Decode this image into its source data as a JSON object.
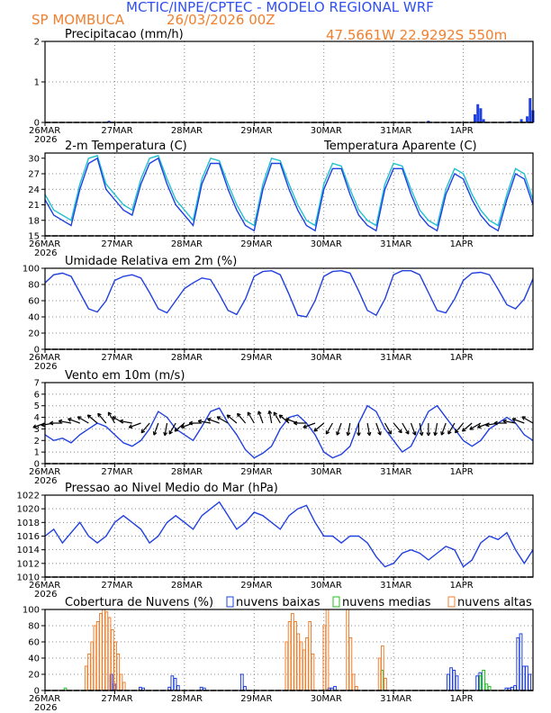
{
  "header": {
    "title": "MCTIC/INPE/CPTEC - MODELO REGIONAL WRF",
    "location": "SP MOMBUCA",
    "run": "26/03/2026 00Z",
    "coords": "47.5661W 22.9292S 550m"
  },
  "colors": {
    "blue": "#2040e0",
    "cyan": "#20c0d0",
    "orange": "#f08030",
    "green": "#20c020",
    "black": "#000000"
  },
  "x_axis": {
    "labels": [
      "26MAR",
      "27MAR",
      "28MAR",
      "29MAR",
      "30MAR",
      "31MAR",
      "1APR"
    ],
    "year": "2026",
    "range_hours": [
      0,
      168
    ]
  },
  "chart_data": [
    {
      "type": "bar",
      "id": "precip",
      "title": "Precipitacao (mm/h)",
      "ylim": [
        0,
        2
      ],
      "yticks": [
        "0",
        "1",
        "2"
      ],
      "x_hours": [
        22,
        38,
        132,
        148,
        149,
        150,
        151,
        160,
        164,
        166,
        167,
        168
      ],
      "values": [
        0.04,
        0.02,
        0.04,
        0.2,
        0.45,
        0.35,
        0.08,
        0.03,
        0.08,
        0.15,
        0.6,
        0.3
      ],
      "series": [
        {
          "name": "Precipitacao",
          "color": "#2040e0"
        }
      ]
    },
    {
      "type": "line",
      "id": "temp",
      "title": "2-m Temperatura (C)",
      "ylim": [
        15,
        31
      ],
      "yticks": [
        "15",
        "18",
        "21",
        "24",
        "27",
        "30"
      ],
      "x": [
        0,
        3,
        6,
        9,
        12,
        15,
        18,
        21,
        24,
        27,
        30,
        33,
        36,
        39,
        42,
        45,
        48,
        51,
        54,
        57,
        60,
        63,
        66,
        69,
        72,
        75,
        78,
        81,
        84,
        87,
        90,
        93,
        96,
        99,
        102,
        105,
        108,
        111,
        114,
        117,
        120,
        123,
        126,
        129,
        132,
        135,
        138,
        141,
        144,
        147,
        150,
        153,
        156,
        159,
        162,
        165,
        168
      ],
      "series": [
        {
          "name": "2-m Temperatura",
          "color": "#2040e0",
          "values": [
            22,
            19,
            18,
            17,
            24,
            29,
            30,
            24,
            22,
            20,
            19,
            25,
            29,
            30,
            25,
            21,
            19,
            17,
            25,
            29,
            29,
            24,
            20,
            17,
            16,
            24,
            29,
            29,
            24,
            20,
            17,
            16,
            24,
            28,
            28,
            23,
            19,
            17,
            16,
            24,
            28,
            28,
            23,
            19,
            17,
            16,
            23,
            27,
            26,
            22,
            19,
            17,
            16,
            22,
            27,
            26,
            21
          ]
        },
        {
          "name": "Temperatura Aparente (C)",
          "color": "#20c0d0",
          "values": [
            23,
            20,
            19,
            18,
            25,
            30,
            30.5,
            25,
            23,
            21,
            20,
            26,
            30,
            30.5,
            26,
            22,
            20,
            18,
            26,
            30,
            29.5,
            25,
            21,
            18,
            17,
            25,
            30,
            29.5,
            25,
            21,
            18,
            17,
            25,
            29,
            28.5,
            24,
            20,
            18,
            17,
            25,
            29,
            28.5,
            24,
            20,
            18,
            17,
            24,
            28,
            27,
            23,
            20,
            18,
            17,
            23,
            28,
            27,
            22
          ]
        }
      ]
    },
    {
      "type": "line",
      "id": "rh",
      "title": "Umidade Relativa em 2m (%)",
      "ylim": [
        0,
        100
      ],
      "yticks": [
        "0",
        "20",
        "40",
        "60",
        "80",
        "100"
      ],
      "x": [
        0,
        3,
        6,
        9,
        12,
        15,
        18,
        21,
        24,
        27,
        30,
        33,
        36,
        39,
        42,
        45,
        48,
        51,
        54,
        57,
        60,
        63,
        66,
        69,
        72,
        75,
        78,
        81,
        84,
        87,
        90,
        93,
        96,
        99,
        102,
        105,
        108,
        111,
        114,
        117,
        120,
        123,
        126,
        129,
        132,
        135,
        138,
        141,
        144,
        147,
        150,
        153,
        156,
        159,
        162,
        165,
        168
      ],
      "series": [
        {
          "name": "Umidade Relativa",
          "color": "#2040e0",
          "values": [
            82,
            92,
            94,
            90,
            70,
            50,
            46,
            60,
            85,
            90,
            92,
            88,
            70,
            50,
            45,
            60,
            75,
            82,
            88,
            86,
            68,
            48,
            43,
            62,
            90,
            96,
            97,
            92,
            68,
            42,
            40,
            60,
            90,
            96,
            97,
            94,
            72,
            48,
            42,
            62,
            92,
            97,
            97,
            92,
            70,
            48,
            45,
            62,
            85,
            94,
            95,
            92,
            74,
            55,
            50,
            62,
            87
          ]
        }
      ]
    },
    {
      "type": "line",
      "id": "wind",
      "title": "Vento em 10m (m/s)",
      "ylim": [
        0,
        7
      ],
      "yticks": [
        "0",
        "1",
        "2",
        "3",
        "4",
        "5",
        "6",
        "7"
      ],
      "x": [
        0,
        3,
        6,
        9,
        12,
        15,
        18,
        21,
        24,
        27,
        30,
        33,
        36,
        39,
        42,
        45,
        48,
        51,
        54,
        57,
        60,
        63,
        66,
        69,
        72,
        75,
        78,
        81,
        84,
        87,
        90,
        93,
        96,
        99,
        102,
        105,
        108,
        111,
        114,
        117,
        120,
        123,
        126,
        129,
        132,
        135,
        138,
        141,
        144,
        147,
        150,
        153,
        156,
        159,
        162,
        165,
        168
      ],
      "series": [
        {
          "name": "Vento",
          "color": "#2040e0",
          "values": [
            2.5,
            2.0,
            2.2,
            1.8,
            2.5,
            3.0,
            3.5,
            3.2,
            2.5,
            1.8,
            1.5,
            2.0,
            3.0,
            4.5,
            4.0,
            3.0,
            2.5,
            2.0,
            3.2,
            4.5,
            4.8,
            3.5,
            2.5,
            1.2,
            0.5,
            0.9,
            1.5,
            3.0,
            4.0,
            4.2,
            3.5,
            2.5,
            1.0,
            0.5,
            0.8,
            1.5,
            3.5,
            5.0,
            4.5,
            3.0,
            2.0,
            1.0,
            1.5,
            3.0,
            4.5,
            5.0,
            4.0,
            3.0,
            2.0,
            1.5,
            2.0,
            3.0,
            3.5,
            4.0,
            3.5,
            2.5,
            2.0
          ]
        }
      ]
    },
    {
      "type": "line",
      "id": "pres",
      "title": "Pressao ao Nivel Medio do Mar (hPa)",
      "ylim": [
        1010,
        1022
      ],
      "yticks": [
        "1010",
        "1012",
        "1014",
        "1016",
        "1018",
        "1020",
        "1022"
      ],
      "x": [
        0,
        3,
        6,
        9,
        12,
        15,
        18,
        21,
        24,
        27,
        30,
        33,
        36,
        39,
        42,
        45,
        48,
        51,
        54,
        57,
        60,
        63,
        66,
        69,
        72,
        75,
        78,
        81,
        84,
        87,
        90,
        93,
        96,
        99,
        102,
        105,
        108,
        111,
        114,
        117,
        120,
        123,
        126,
        129,
        132,
        135,
        138,
        141,
        144,
        147,
        150,
        153,
        156,
        159,
        162,
        165,
        168
      ],
      "series": [
        {
          "name": "Pressao",
          "color": "#2040e0",
          "values": [
            1016,
            1017,
            1015,
            1016.5,
            1018,
            1016,
            1015,
            1016,
            1018,
            1019,
            1018,
            1017,
            1015,
            1016,
            1018,
            1019,
            1018,
            1017,
            1019,
            1020,
            1021,
            1019,
            1017,
            1018,
            1019.5,
            1019,
            1018,
            1017,
            1019,
            1020,
            1020.5,
            1018,
            1016,
            1016,
            1015,
            1016,
            1016,
            1015,
            1013,
            1011.5,
            1012,
            1013.5,
            1014,
            1013.5,
            1012.5,
            1013.5,
            1014.5,
            1014,
            1011.5,
            1012.5,
            1015,
            1016,
            1015.5,
            1016.5,
            1014,
            1012,
            1014
          ]
        }
      ]
    },
    {
      "type": "bar",
      "id": "clouds",
      "title": "Cobertura de Nuvens (%)",
      "ylim": [
        0,
        100
      ],
      "yticks": [
        "0",
        "20",
        "40",
        "60",
        "80",
        "100"
      ],
      "series": [
        {
          "name": "nuvens baixas",
          "color": "#2040e0",
          "x_hours": [
            23,
            24,
            33,
            34,
            43,
            44,
            45,
            46,
            54,
            55,
            68,
            69,
            98,
            99,
            100,
            139,
            140,
            141,
            142,
            149,
            150,
            159,
            160,
            161,
            162,
            163,
            164,
            165,
            166,
            167
          ],
          "values": [
            20,
            8,
            4,
            3,
            4,
            18,
            15,
            6,
            4,
            3,
            20,
            5,
            3,
            3,
            5,
            20,
            28,
            25,
            18,
            18,
            22,
            3,
            3,
            4,
            6,
            65,
            70,
            30,
            30,
            20
          ]
        },
        {
          "name": "nuvens medias",
          "color": "#20c020",
          "x_hours": [
            7,
            116,
            150,
            151,
            152,
            153
          ],
          "values": [
            3,
            25,
            18,
            25,
            8,
            5
          ]
        },
        {
          "name": "nuvens altas",
          "color": "#f08030",
          "x_hours": [
            14,
            15,
            16,
            17,
            18,
            19,
            20,
            21,
            22,
            23,
            24,
            25,
            26,
            27,
            83,
            84,
            85,
            86,
            87,
            88,
            89,
            90,
            91,
            92,
            96,
            97,
            104,
            105,
            106,
            107,
            115,
            116,
            117
          ],
          "values": [
            30,
            45,
            60,
            80,
            85,
            95,
            100,
            97,
            90,
            75,
            60,
            45,
            20,
            10,
            60,
            85,
            95,
            85,
            70,
            60,
            50,
            65,
            85,
            45,
            80,
            100,
            100,
            65,
            20,
            5,
            40,
            55,
            15
          ]
        }
      ]
    }
  ],
  "wind_arrows": {
    "x_hours": [
      0,
      3,
      6,
      9,
      12,
      15,
      18,
      21,
      24,
      27,
      30,
      33,
      36,
      39,
      42,
      45,
      48,
      51,
      54,
      57,
      60,
      63,
      66,
      69,
      72,
      75,
      78,
      81,
      84,
      87,
      90,
      93,
      96,
      99,
      102,
      105,
      108,
      111,
      114,
      117,
      120,
      123,
      126,
      129,
      132,
      135,
      138,
      141,
      144,
      147,
      150,
      153,
      156,
      159,
      162,
      165,
      168
    ],
    "angles_deg": [
      200,
      190,
      180,
      170,
      160,
      150,
      140,
      130,
      120,
      150,
      170,
      200,
      230,
      250,
      260,
      240,
      220,
      200,
      180,
      170,
      160,
      150,
      140,
      130,
      120,
      110,
      100,
      120,
      140,
      160,
      180,
      200,
      220,
      240,
      250,
      260,
      270,
      280,
      290,
      300,
      310,
      300,
      290,
      280,
      270,
      260,
      250,
      240,
      230,
      220,
      210,
      200,
      190,
      180,
      170,
      160,
      150
    ]
  }
}
